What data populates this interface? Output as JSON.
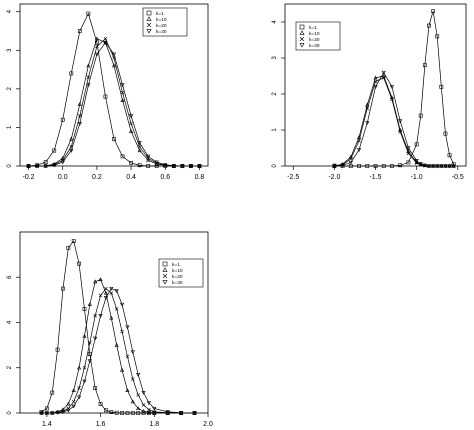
{
  "chart_data": [
    {
      "type": "line",
      "title": "",
      "xlabel": "",
      "ylabel": "",
      "xlim": [
        -0.25,
        0.85
      ],
      "ylim": [
        0,
        4.2
      ],
      "xticks": [
        "-0.2",
        "0.0",
        "0.2",
        "0.4",
        "0.6",
        "0.8"
      ],
      "xtick_values": [
        -0.2,
        0.0,
        0.2,
        0.4,
        0.6,
        0.8
      ],
      "yticks": [
        "0",
        "1",
        "2",
        "3",
        "4"
      ],
      "ytick_values": [
        0,
        1,
        2,
        3,
        4
      ],
      "grid": false,
      "legend_position": "top-right",
      "x": [
        -0.2,
        -0.15,
        -0.1,
        -0.05,
        0.0,
        0.05,
        0.1,
        0.15,
        0.2,
        0.25,
        0.3,
        0.35,
        0.4,
        0.45,
        0.5,
        0.55,
        0.6,
        0.65,
        0.7,
        0.75,
        0.8
      ],
      "series": [
        {
          "name": "k=1",
          "marker": "square",
          "values": [
            0.0,
            0.02,
            0.1,
            0.4,
            1.2,
            2.4,
            3.5,
            3.95,
            3.2,
            1.8,
            0.7,
            0.25,
            0.08,
            0.02,
            0.0,
            0.0,
            0.0,
            0.0,
            0.0,
            0.0,
            0.0
          ]
        },
        {
          "name": "k=10",
          "marker": "triangle",
          "values": [
            0.0,
            0.0,
            0.0,
            0.05,
            0.2,
            0.7,
            1.6,
            2.6,
            3.3,
            3.2,
            2.6,
            1.7,
            0.9,
            0.4,
            0.15,
            0.05,
            0.02,
            0.0,
            0.0,
            0.0,
            0.0
          ]
        },
        {
          "name": "k=20",
          "marker": "cross",
          "values": [
            0.0,
            0.0,
            0.0,
            0.03,
            0.15,
            0.5,
            1.3,
            2.3,
            3.1,
            3.3,
            2.8,
            1.9,
            1.1,
            0.5,
            0.2,
            0.07,
            0.02,
            0.0,
            0.0,
            0.0,
            0.0
          ]
        },
        {
          "name": "k=30",
          "marker": "nabla",
          "values": [
            0.0,
            0.0,
            0.0,
            0.02,
            0.1,
            0.4,
            1.1,
            2.1,
            2.9,
            3.2,
            2.9,
            2.1,
            1.3,
            0.6,
            0.25,
            0.1,
            0.03,
            0.01,
            0.0,
            0.0,
            0.0
          ]
        }
      ]
    },
    {
      "type": "line",
      "title": "",
      "xlabel": "",
      "ylabel": "",
      "xlim": [
        -2.6,
        -0.4
      ],
      "ylim": [
        0,
        4.5
      ],
      "xticks": [
        "-2.5",
        "-2.0",
        "-1.5",
        "-1.0",
        "-0.5"
      ],
      "xtick_values": [
        -2.5,
        -2.0,
        -1.5,
        -1.0,
        -0.5
      ],
      "yticks": [
        "0",
        "1",
        "2",
        "3",
        "4"
      ],
      "ytick_values": [
        0,
        1,
        2,
        3,
        4
      ],
      "grid": false,
      "legend_position": "top-left",
      "x": [
        -2.0,
        -1.9,
        -1.8,
        -1.7,
        -1.6,
        -1.5,
        -1.4,
        -1.3,
        -1.2,
        -1.1,
        -1.0,
        -0.95,
        -0.9,
        -0.85,
        -0.8,
        -0.75,
        -0.7,
        -0.65,
        -0.6,
        -0.55
      ],
      "series": [
        {
          "name": "k=1",
          "marker": "square",
          "values": [
            0.0,
            0.0,
            0.0,
            0.0,
            0.0,
            0.0,
            0.0,
            0.0,
            0.02,
            0.1,
            0.6,
            1.4,
            2.8,
            3.9,
            4.3,
            3.6,
            2.2,
            0.9,
            0.3,
            0.05
          ]
        },
        {
          "name": "k=10",
          "marker": "triangle",
          "values": [
            0.0,
            0.05,
            0.25,
            0.8,
            1.7,
            2.45,
            2.5,
            1.9,
            1.0,
            0.4,
            0.1,
            0.05,
            0.02,
            0.0,
            0.0,
            0.0,
            0.0,
            0.0,
            0.0,
            0.0
          ]
        },
        {
          "name": "k=20",
          "marker": "cross",
          "values": [
            0.0,
            0.03,
            0.2,
            0.7,
            1.6,
            2.35,
            2.45,
            1.85,
            0.95,
            0.35,
            0.08,
            0.04,
            0.01,
            0.0,
            0.0,
            0.0,
            0.0,
            0.0,
            0.0,
            0.0
          ]
        },
        {
          "name": "k=30",
          "marker": "nabla",
          "values": [
            0.02,
            0.02,
            0.1,
            0.45,
            1.2,
            2.2,
            2.6,
            2.2,
            1.25,
            0.5,
            0.15,
            0.06,
            0.02,
            0.0,
            0.0,
            0.0,
            0.0,
            0.0,
            0.0,
            0.0
          ]
        }
      ]
    },
    {
      "type": "line",
      "title": "",
      "xlabel": "",
      "ylabel": "",
      "xlim": [
        1.3,
        2.0
      ],
      "ylim": [
        0,
        8.0
      ],
      "xticks": [
        "1.4",
        "1.6",
        "1.8",
        "2.0"
      ],
      "xtick_values": [
        1.4,
        1.6,
        1.8,
        2.0
      ],
      "yticks": [
        "0",
        "2",
        "4",
        "6"
      ],
      "ytick_values": [
        0,
        2,
        4,
        6
      ],
      "grid": false,
      "legend_position": "top-right",
      "x": [
        1.38,
        1.4,
        1.42,
        1.44,
        1.46,
        1.48,
        1.5,
        1.52,
        1.54,
        1.56,
        1.58,
        1.6,
        1.62,
        1.64,
        1.66,
        1.68,
        1.7,
        1.72,
        1.74,
        1.76,
        1.78,
        1.8,
        1.85,
        1.9,
        1.95
      ],
      "series": [
        {
          "name": "k=1",
          "marker": "square",
          "values": [
            0.05,
            0.2,
            0.9,
            2.8,
            5.5,
            7.3,
            7.6,
            6.6,
            4.6,
            2.6,
            1.1,
            0.4,
            0.12,
            0.04,
            0.01,
            0.0,
            0.0,
            0.0,
            0.0,
            0.0,
            0.0,
            0.0,
            0.0,
            0.0,
            0.0
          ]
        },
        {
          "name": "k=10",
          "marker": "triangle",
          "values": [
            0.0,
            0.0,
            0.0,
            0.05,
            0.15,
            0.4,
            1.0,
            2.0,
            3.4,
            4.8,
            5.8,
            5.9,
            5.3,
            4.2,
            3.0,
            1.9,
            1.0,
            0.5,
            0.2,
            0.08,
            0.03,
            0.01,
            0.0,
            0.0,
            0.0
          ]
        },
        {
          "name": "k=20",
          "marker": "cross",
          "values": [
            0.0,
            0.0,
            0.0,
            0.03,
            0.08,
            0.2,
            0.5,
            1.1,
            2.0,
            3.1,
            4.3,
            5.2,
            5.5,
            5.3,
            4.6,
            3.6,
            2.5,
            1.5,
            0.8,
            0.35,
            0.15,
            0.05,
            0.01,
            0.0,
            0.0
          ]
        },
        {
          "name": "k=30",
          "marker": "nabla",
          "values": [
            0.0,
            0.0,
            0.0,
            0.02,
            0.05,
            0.12,
            0.3,
            0.7,
            1.4,
            2.3,
            3.3,
            4.3,
            5.1,
            5.5,
            5.4,
            4.8,
            3.8,
            2.7,
            1.7,
            0.9,
            0.45,
            0.2,
            0.05,
            0.01,
            0.0
          ]
        }
      ]
    }
  ]
}
